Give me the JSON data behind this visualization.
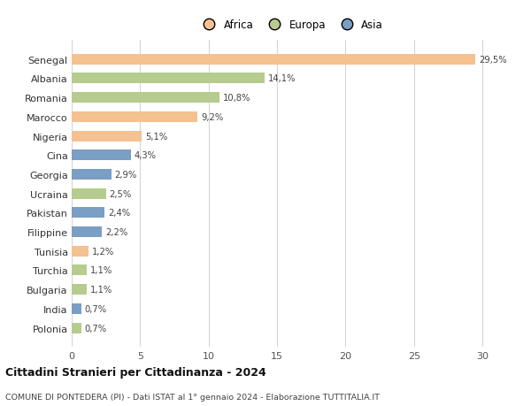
{
  "countries": [
    "Senegal",
    "Albania",
    "Romania",
    "Marocco",
    "Nigeria",
    "Cina",
    "Georgia",
    "Ucraina",
    "Pakistan",
    "Filippine",
    "Tunisia",
    "Turchia",
    "Bulgaria",
    "India",
    "Polonia"
  ],
  "values": [
    29.5,
    14.1,
    10.8,
    9.2,
    5.1,
    4.3,
    2.9,
    2.5,
    2.4,
    2.2,
    1.2,
    1.1,
    1.1,
    0.7,
    0.7
  ],
  "labels": [
    "29,5%",
    "14,1%",
    "10,8%",
    "9,2%",
    "5,1%",
    "4,3%",
    "2,9%",
    "2,5%",
    "2,4%",
    "2,2%",
    "1,2%",
    "1,1%",
    "1,1%",
    "0,7%",
    "0,7%"
  ],
  "colors": [
    "#f5c191",
    "#b5cc8e",
    "#b5cc8e",
    "#f5c191",
    "#f5c191",
    "#7a9ec4",
    "#7a9ec4",
    "#b5cc8e",
    "#7a9ec4",
    "#7a9ec4",
    "#f5c191",
    "#b5cc8e",
    "#b5cc8e",
    "#7a9ec4",
    "#b5cc8e"
  ],
  "legend_labels": [
    "Africa",
    "Europa",
    "Asia"
  ],
  "legend_colors": [
    "#f5c191",
    "#b5cc8e",
    "#7a9ec4"
  ],
  "title": "Cittadini Stranieri per Cittadinanza - 2024",
  "subtitle": "COMUNE DI PONTEDERA (PI) - Dati ISTAT al 1° gennaio 2024 - Elaborazione TUTTITALIA.IT",
  "xlim": [
    0,
    32
  ],
  "xticks": [
    0,
    5,
    10,
    15,
    20,
    25,
    30
  ],
  "bg_color": "#ffffff",
  "grid_color": "#d5d5d5",
  "bar_height": 0.55
}
